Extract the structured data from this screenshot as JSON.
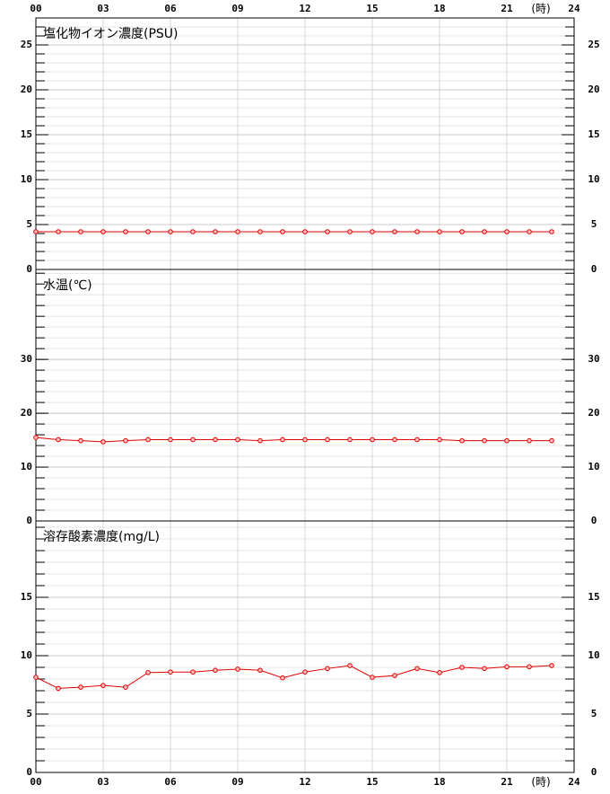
{
  "chart_data": [
    {
      "type": "line",
      "title": "塩化物イオン濃度(PSU)",
      "xlabel": "(時)",
      "x": [
        0,
        1,
        2,
        3,
        4,
        5,
        6,
        7,
        8,
        9,
        10,
        11,
        12,
        13,
        14,
        15,
        16,
        17,
        18,
        19,
        20,
        21,
        22,
        23
      ],
      "xlim": [
        0,
        24
      ],
      "xticks": [
        {
          "value": 0,
          "label": "00"
        },
        {
          "value": 3,
          "label": "03"
        },
        {
          "value": 6,
          "label": "06"
        },
        {
          "value": 9,
          "label": "09"
        },
        12,
        15,
        18,
        21,
        24
      ],
      "ylim": [
        0,
        28
      ],
      "yticks": [
        0,
        5,
        10,
        15,
        20,
        25
      ],
      "yminor": 1,
      "grid": true,
      "series": [
        {
          "color": "#e00000",
          "values": [
            4.2,
            4.2,
            4.2,
            4.2,
            4.2,
            4.2,
            4.2,
            4.2,
            4.2,
            4.2,
            4.2,
            4.2,
            4.2,
            4.2,
            4.2,
            4.2,
            4.2,
            4.2,
            4.2,
            4.2,
            4.2,
            4.2,
            4.2,
            4.2
          ]
        }
      ]
    },
    {
      "type": "line",
      "title": "水温(℃)",
      "x": [
        0,
        1,
        2,
        3,
        4,
        5,
        6,
        7,
        8,
        9,
        10,
        11,
        12,
        13,
        14,
        15,
        16,
        17,
        18,
        19,
        20,
        21,
        22,
        23
      ],
      "xlim": [
        0,
        24
      ],
      "xticks": [
        {
          "value": 0,
          "label": "00"
        },
        {
          "value": 3,
          "label": "03"
        },
        {
          "value": 6,
          "label": "06"
        },
        {
          "value": 9,
          "label": "09"
        },
        12,
        15,
        18,
        21,
        24
      ],
      "ylim": [
        0,
        46.7
      ],
      "yticks": [
        0,
        10,
        20,
        30
      ],
      "yminor": 2,
      "grid": true,
      "series": [
        {
          "color": "#e00000",
          "values": [
            15.5,
            15.1,
            14.9,
            14.7,
            14.9,
            15.1,
            15.1,
            15.1,
            15.1,
            15.1,
            14.9,
            15.1,
            15.1,
            15.1,
            15.1,
            15.1,
            15.1,
            15.1,
            15.1,
            14.9,
            14.9,
            14.9,
            14.9,
            14.9
          ]
        }
      ]
    },
    {
      "type": "line",
      "title": "溶存酸素濃度(mg/L)",
      "xlabel": "(時)",
      "x": [
        0,
        1,
        2,
        3,
        4,
        5,
        6,
        7,
        8,
        9,
        10,
        11,
        12,
        13,
        14,
        15,
        16,
        17,
        18,
        19,
        20,
        21,
        22,
        23
      ],
      "xlim": [
        0,
        24
      ],
      "xticks": [
        {
          "value": 0,
          "label": "00"
        },
        {
          "value": 3,
          "label": "03"
        },
        {
          "value": 6,
          "label": "06"
        },
        {
          "value": 9,
          "label": "09"
        },
        12,
        15,
        18,
        21,
        24
      ],
      "ylim": [
        0,
        21.54
      ],
      "yticks": [
        0,
        5,
        10,
        15
      ],
      "yminor": 1,
      "grid": true,
      "series": [
        {
          "color": "#e00000",
          "values": [
            8.15,
            7.2,
            7.3,
            7.45,
            7.3,
            8.55,
            8.6,
            8.6,
            8.75,
            8.85,
            8.75,
            8.1,
            8.6,
            8.9,
            9.15,
            8.15,
            8.3,
            8.9,
            8.55,
            9.0,
            8.9,
            9.05,
            9.05,
            9.15
          ]
        }
      ]
    }
  ]
}
